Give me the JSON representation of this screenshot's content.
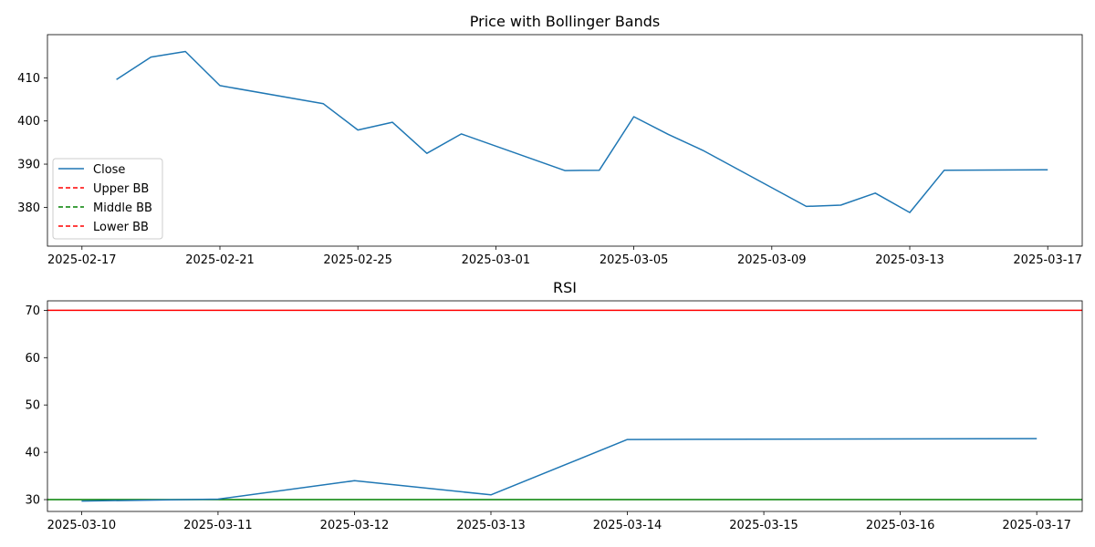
{
  "chart_data": [
    {
      "type": "line",
      "title": "Price with Bollinger Bands",
      "xlabel": "",
      "ylabel": "",
      "x_type": "date",
      "xlim": [
        "2025-02-16",
        "2025-03-18"
      ],
      "ylim": [
        371,
        420
      ],
      "grid": false,
      "legend_position": "center-left",
      "x_ticks": [
        "2025-02-17",
        "2025-02-21",
        "2025-02-25",
        "2025-03-01",
        "2025-03-05",
        "2025-03-09",
        "2025-03-13",
        "2025-03-17"
      ],
      "y_ticks": [
        380,
        390,
        400,
        410
      ],
      "colors": {
        "Close": "#1f77b4",
        "Upper BB": "#d62728",
        "Middle BB": "#2ca02c",
        "Lower BB": "#d62728"
      },
      "legend": [
        {
          "name": "Close",
          "color": "#1f77b4",
          "dashed": false
        },
        {
          "name": "Upper BB",
          "color": "#ff0000",
          "dashed": true
        },
        {
          "name": "Middle BB",
          "color": "#008000",
          "dashed": true
        },
        {
          "name": "Lower BB",
          "color": "#ff0000",
          "dashed": true
        }
      ],
      "series": [
        {
          "name": "Close",
          "color": "#1f77b4",
          "x": [
            "2025-02-18",
            "2025-02-19",
            "2025-02-20",
            "2025-02-21",
            "2025-02-24",
            "2025-02-25",
            "2025-02-26",
            "2025-02-27",
            "2025-02-28",
            "2025-03-03",
            "2025-03-04",
            "2025-03-05",
            "2025-03-06",
            "2025-03-07",
            "2025-03-10",
            "2025-03-11",
            "2025-03-12",
            "2025-03-13",
            "2025-03-14",
            "2025-03-17"
          ],
          "y": [
            409.6,
            414.8,
            416.1,
            408.2,
            404.0,
            397.9,
            399.7,
            392.5,
            397.0,
            388.5,
            388.6,
            401.0,
            396.9,
            393.2,
            380.2,
            380.5,
            383.3,
            378.8,
            388.6,
            388.7
          ]
        }
      ]
    },
    {
      "type": "line",
      "title": "RSI",
      "xlabel": "",
      "ylabel": "",
      "x_type": "date",
      "xlim": [
        "2025-03-09T18:00",
        "2025-03-17T08:00"
      ],
      "ylim": [
        27.5,
        72
      ],
      "grid": false,
      "x_ticks": [
        "2025-03-10",
        "2025-03-11",
        "2025-03-12",
        "2025-03-13",
        "2025-03-14",
        "2025-03-15",
        "2025-03-16",
        "2025-03-17"
      ],
      "y_ticks": [
        30,
        40,
        50,
        60,
        70
      ],
      "hlines": [
        {
          "y": 70,
          "color": "#ff0000"
        },
        {
          "y": 30,
          "color": "#008000"
        }
      ],
      "series": [
        {
          "name": "RSI",
          "color": "#1f77b4",
          "x": [
            "2025-03-10",
            "2025-03-11",
            "2025-03-12",
            "2025-03-13",
            "2025-03-14",
            "2025-03-17"
          ],
          "y": [
            29.7,
            30.1,
            34.0,
            31.0,
            42.7,
            42.9
          ]
        }
      ]
    }
  ]
}
